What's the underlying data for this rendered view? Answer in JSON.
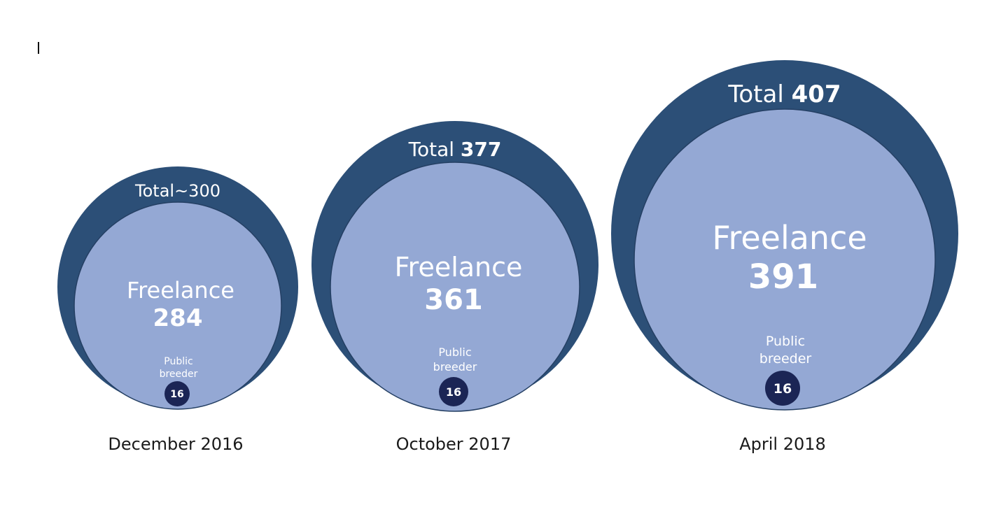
{
  "colors": {
    "outer": "#2c4f77",
    "inner": "#94a8d4",
    "small": "#1b2555",
    "text": "#ffffff",
    "date_text": "#1a1a1a"
  },
  "groups": [
    {
      "total_label": "Total~300",
      "total_prefix": "",
      "total_value": "",
      "freelance_label": "Freelance",
      "freelance_value": "284",
      "public_label_line1": "Public",
      "public_label_line2": "breeder",
      "public_value": "16",
      "date": "December 2016"
    },
    {
      "total_label": "",
      "total_prefix": "Total",
      "total_value": "377",
      "freelance_label": "Freelance",
      "freelance_value": "361",
      "public_label_line1": "Public",
      "public_label_line2": "breeder",
      "public_value": "16",
      "date": "October 2017"
    },
    {
      "total_label": "",
      "total_prefix": "Total",
      "total_value": "407",
      "freelance_label": "Freelance",
      "freelance_value": "391",
      "public_label_line1": "Public",
      "public_label_line2": "breeder",
      "public_value": "16",
      "date": "April 2018"
    }
  ]
}
